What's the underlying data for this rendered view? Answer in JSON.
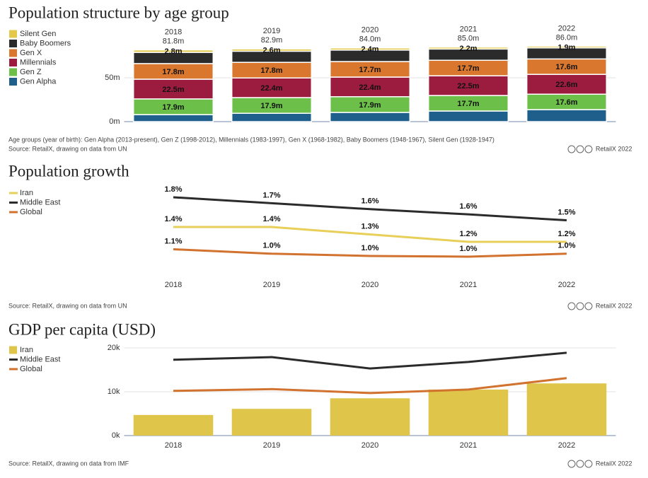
{
  "chart_data": [
    {
      "type": "stacked",
      "title": "Population structure by age group",
      "categories": [
        "2018",
        "2019",
        "2020",
        "2021",
        "2022"
      ],
      "series": [
        {
          "name": "Silent Gen",
          "color": "#e3c84a",
          "values": [
            2.8,
            2.6,
            2.4,
            2.2,
            1.9
          ],
          "value_labels": [
            "2.8m",
            "2.6m",
            "2.4m",
            "2.2m",
            "1.9m"
          ]
        },
        {
          "name": "Baby Boomers",
          "color": "#2b2b2b",
          "values": [
            12.8,
            12.7,
            13.1,
            12.8,
            12.6
          ]
        },
        {
          "name": "Gen X",
          "color": "#d9772e",
          "values": [
            17.8,
            17.8,
            17.7,
            17.7,
            17.6
          ],
          "value_labels": [
            "17.8m",
            "17.8m",
            "17.7m",
            "17.7m",
            "17.6m"
          ]
        },
        {
          "name": "Millennials",
          "color": "#9c1c3f",
          "values": [
            22.5,
            22.4,
            22.4,
            22.5,
            22.6
          ],
          "value_labels": [
            "22.5m",
            "22.4m",
            "22.4m",
            "22.5m",
            "22.6m"
          ]
        },
        {
          "name": "Gen Z",
          "color": "#6cc04a",
          "values": [
            17.9,
            17.9,
            17.9,
            17.7,
            17.6
          ],
          "value_labels": [
            "17.9m",
            "17.9m",
            "17.9m",
            "17.7m",
            "17.6m"
          ]
        },
        {
          "name": "Gen Alpha",
          "color": "#1f5f8b",
          "values": [
            8.0,
            9.5,
            10.5,
            12.1,
            13.7
          ]
        }
      ],
      "totals": {
        "values": [
          81.8,
          82.9,
          84.0,
          85.0,
          86.0
        ],
        "value_labels": [
          "81.8m",
          "82.9m",
          "84.0m",
          "85.0m",
          "86.0m"
        ]
      },
      "ylim": [
        0,
        90
      ],
      "yticks": [
        {
          "value": 0,
          "label": "0m"
        },
        {
          "value": 50,
          "label": "50m"
        }
      ],
      "grid": true,
      "note": "Age groups (year of birth): Gen Alpha (2013-present), Gen Z (1998-2012), Millennials (1983-1997), Gen X (1968-1982), Baby Boomers (1948-1967), Silent Gen (1928-1947)",
      "source": "Source: RetailX, drawing on data from UN",
      "credit": "RetailX 2022"
    },
    {
      "type": "line",
      "title": "Population growth",
      "categories": [
        "2018",
        "2019",
        "2020",
        "2021",
        "2022"
      ],
      "series": [
        {
          "name": "Iran",
          "color": "#e8cf5a",
          "values": [
            1.4,
            1.4,
            1.3,
            1.2,
            1.2
          ],
          "value_labels": [
            "1.4%",
            "1.4%",
            "1.3%",
            "1.2%",
            "1.2%"
          ]
        },
        {
          "name": "Middle East",
          "color": "#2b2b2b",
          "values": [
            1.8,
            1.72,
            1.64,
            1.57,
            1.49
          ],
          "value_labels": [
            "1.8%",
            "1.7%",
            "1.6%",
            "1.6%",
            "1.5%"
          ]
        },
        {
          "name": "Global",
          "color": "#d2722f",
          "values": [
            1.1,
            1.04,
            1.01,
            1.0,
            1.04
          ],
          "value_labels": [
            "1.1%",
            "1.0%",
            "1.0%",
            "1.0%",
            "1.0%"
          ]
        }
      ],
      "ylim": [
        0.8,
        2.0
      ],
      "source": "Source: RetailX, drawing on data from UN",
      "credit": "RetailX 2022"
    },
    {
      "type": "combo",
      "title": "GDP per capita (USD)",
      "categories": [
        "2018",
        "2019",
        "2020",
        "2021",
        "2022"
      ],
      "series": [
        {
          "name": "Iran",
          "type": "bar",
          "color": "#dfc64b",
          "values": [
            4700,
            6100,
            8500,
            10500,
            11900
          ]
        },
        {
          "name": "Middle East",
          "type": "line",
          "color": "#2b2b2b",
          "values": [
            17300,
            17900,
            15300,
            16800,
            18900
          ]
        },
        {
          "name": "Global",
          "type": "line",
          "color": "#d2722f",
          "values": [
            10200,
            10600,
            9700,
            10500,
            13100
          ]
        }
      ],
      "ylim": [
        0,
        21000
      ],
      "yticks": [
        {
          "value": 0,
          "label": "0k"
        },
        {
          "value": 10000,
          "label": "10k"
        },
        {
          "value": 20000,
          "label": "20k"
        }
      ],
      "grid": true,
      "source": "Source: RetailX, drawing on data from IMF",
      "credit": "RetailX 2022"
    }
  ]
}
